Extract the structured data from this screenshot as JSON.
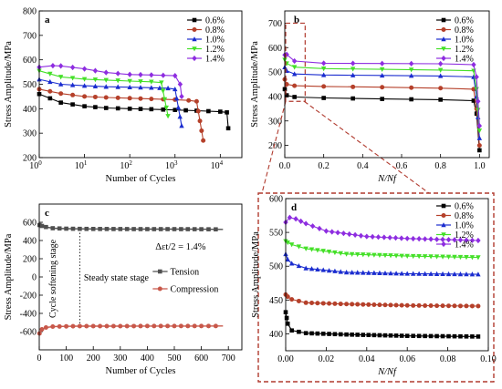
{
  "colors": {
    "0.6%": "#000000",
    "0.8%": "#b5402a",
    "1.0%": "#1a2ccf",
    "1.2%": "#44e028",
    "1.4%": "#8e2de0",
    "tension": "#505050",
    "compression": "#c8584a",
    "highlight": "#b03a2e"
  },
  "legend_labels": [
    "0.6%",
    "0.8%",
    "1.0%",
    "1.2%",
    "1.4%"
  ],
  "chart_data": [
    {
      "panel": "a",
      "type": "line",
      "xlabel": "Number of Cycles",
      "ylabel": "Stress Amplitude/MPa",
      "x_scale": "log",
      "xlim": [
        1,
        30000
      ],
      "ylim": [
        200,
        800
      ],
      "x_tick_labels": [
        "10^0",
        "10^1",
        "10^2",
        "10^3",
        "10^4"
      ],
      "y_ticks": [
        200,
        300,
        400,
        500,
        600,
        700,
        800
      ],
      "legend_position": "top-right",
      "series": [
        {
          "name": "0.6%",
          "x": [
            1,
            3,
            10,
            30,
            100,
            300,
            1000,
            3000,
            10000,
            14000,
            15000
          ],
          "y": [
            460,
            425,
            410,
            403,
            400,
            398,
            395,
            392,
            388,
            385,
            320
          ]
        },
        {
          "name": "0.8%",
          "x": [
            1,
            3,
            10,
            30,
            100,
            300,
            1000,
            2000,
            3000,
            4200
          ],
          "y": [
            480,
            462,
            450,
            446,
            443,
            440,
            437,
            434,
            430,
            270
          ]
        },
        {
          "name": "1.0%",
          "x": [
            1,
            3,
            10,
            30,
            100,
            300,
            700,
            1000,
            1400
          ],
          "y": [
            520,
            500,
            494,
            490,
            488,
            486,
            484,
            480,
            330
          ]
        },
        {
          "name": "1.2%",
          "x": [
            1,
            3,
            10,
            30,
            100,
            300,
            500,
            700
          ],
          "y": [
            555,
            530,
            521,
            517,
            513,
            510,
            507,
            370
          ]
        },
        {
          "name": "1.4%",
          "x": [
            1,
            2,
            3,
            10,
            30,
            100,
            300,
            1000,
            1300,
            1400
          ],
          "y": [
            570,
            576,
            575,
            563,
            548,
            540,
            538,
            535,
            500,
            450
          ]
        }
      ]
    },
    {
      "panel": "b",
      "type": "line",
      "xlabel": "N/Nf",
      "ylabel": "Stress Amplitude/MPa",
      "xlim": [
        0,
        1.05
      ],
      "ylim": [
        150,
        750
      ],
      "x_ticks": [
        0.0,
        0.2,
        0.4,
        0.6,
        0.8,
        1.0
      ],
      "y_ticks": [
        200,
        300,
        400,
        500,
        600,
        700
      ],
      "legend_position": "top-right",
      "series": [
        {
          "name": "0.6%",
          "x": [
            0,
            0.01,
            0.05,
            0.2,
            0.5,
            0.8,
            0.97,
            0.985,
            1.0
          ],
          "y": [
            430,
            405,
            398,
            394,
            390,
            387,
            383,
            330,
            180
          ]
        },
        {
          "name": "0.8%",
          "x": [
            0,
            0.01,
            0.05,
            0.2,
            0.5,
            0.8,
            0.97,
            0.985,
            1.0
          ],
          "y": [
            470,
            450,
            444,
            441,
            438,
            434,
            430,
            350,
            200
          ]
        },
        {
          "name": "1.0%",
          "x": [
            0,
            0.01,
            0.05,
            0.2,
            0.5,
            0.8,
            0.97,
            0.985,
            1.0
          ],
          "y": [
            520,
            505,
            492,
            488,
            486,
            484,
            480,
            400,
            230
          ]
        },
        {
          "name": "1.2%",
          "x": [
            0,
            0.01,
            0.05,
            0.2,
            0.5,
            0.8,
            0.97,
            0.985,
            1.0
          ],
          "y": [
            550,
            535,
            520,
            514,
            511,
            508,
            505,
            430,
            260
          ]
        },
        {
          "name": "1.4%",
          "x": [
            0,
            0.01,
            0.05,
            0.2,
            0.5,
            0.8,
            0.97,
            0.985,
            1.0
          ],
          "y": [
            570,
            572,
            545,
            536,
            535,
            534,
            530,
            480,
            280
          ]
        }
      ]
    },
    {
      "panel": "c",
      "type": "line",
      "xlabel": "Number of Cycles",
      "ylabel": "Stress Amplitude/MPa",
      "xlim": [
        0,
        750
      ],
      "ylim": [
        -800,
        800
      ],
      "x_ticks": [
        0,
        100,
        200,
        300,
        400,
        500,
        600,
        700
      ],
      "y_ticks": [
        -600,
        -400,
        -200,
        0,
        200,
        400,
        600
      ],
      "annotations": [
        "Δεt/2 = 1.4%",
        "Cycle softening stage",
        "Steady state stage"
      ],
      "legend_position": "center-right",
      "series": [
        {
          "name": "Tension",
          "x": [
            1,
            10,
            25,
            50,
            100,
            150,
            200,
            300,
            400,
            500,
            600,
            680
          ],
          "y": [
            570,
            560,
            548,
            535,
            530,
            528,
            527,
            526,
            525,
            525,
            524,
            522
          ]
        },
        {
          "name": "Compression",
          "x": [
            1,
            10,
            25,
            50,
            100,
            150,
            200,
            300,
            400,
            500,
            600,
            680
          ],
          "y": [
            -620,
            -575,
            -555,
            -545,
            -542,
            -540,
            -540,
            -540,
            -539,
            -539,
            -539,
            -538
          ]
        }
      ]
    },
    {
      "panel": "d",
      "type": "line",
      "xlabel": "N/Nf",
      "ylabel": "Stress Amplitude/MPa",
      "xlim": [
        0,
        0.1
      ],
      "ylim": [
        375,
        600
      ],
      "x_ticks": [
        0.0,
        0.02,
        0.04,
        0.06,
        0.08,
        0.1
      ],
      "x_tick_labels": [
        "0.00",
        "0.02",
        "0.04",
        "0.06",
        "0.08",
        "0.10"
      ],
      "y_ticks": [
        400,
        450,
        500,
        550,
        600
      ],
      "legend_position": "top-right",
      "series": [
        {
          "name": "0.6%",
          "x": [
            0,
            0.001,
            0.003,
            0.01,
            0.03,
            0.06,
            0.095
          ],
          "y": [
            432,
            415,
            405,
            401,
            399,
            397,
            396
          ]
        },
        {
          "name": "0.8%",
          "x": [
            0,
            0.001,
            0.003,
            0.01,
            0.03,
            0.06,
            0.095
          ],
          "y": [
            458,
            455,
            451,
            446,
            444,
            442,
            441
          ]
        },
        {
          "name": "1.0%",
          "x": [
            0,
            0.001,
            0.003,
            0.01,
            0.03,
            0.06,
            0.095
          ],
          "y": [
            518,
            510,
            504,
            497,
            491,
            489,
            488
          ]
        },
        {
          "name": "1.2%",
          "x": [
            0,
            0.001,
            0.003,
            0.01,
            0.03,
            0.06,
            0.095
          ],
          "y": [
            537,
            535,
            532,
            526,
            518,
            515,
            513
          ]
        },
        {
          "name": "1.4%",
          "x": [
            0,
            0.002,
            0.005,
            0.01,
            0.02,
            0.04,
            0.06,
            0.095
          ],
          "y": [
            565,
            572,
            570,
            563,
            552,
            544,
            541,
            538
          ]
        }
      ]
    }
  ]
}
